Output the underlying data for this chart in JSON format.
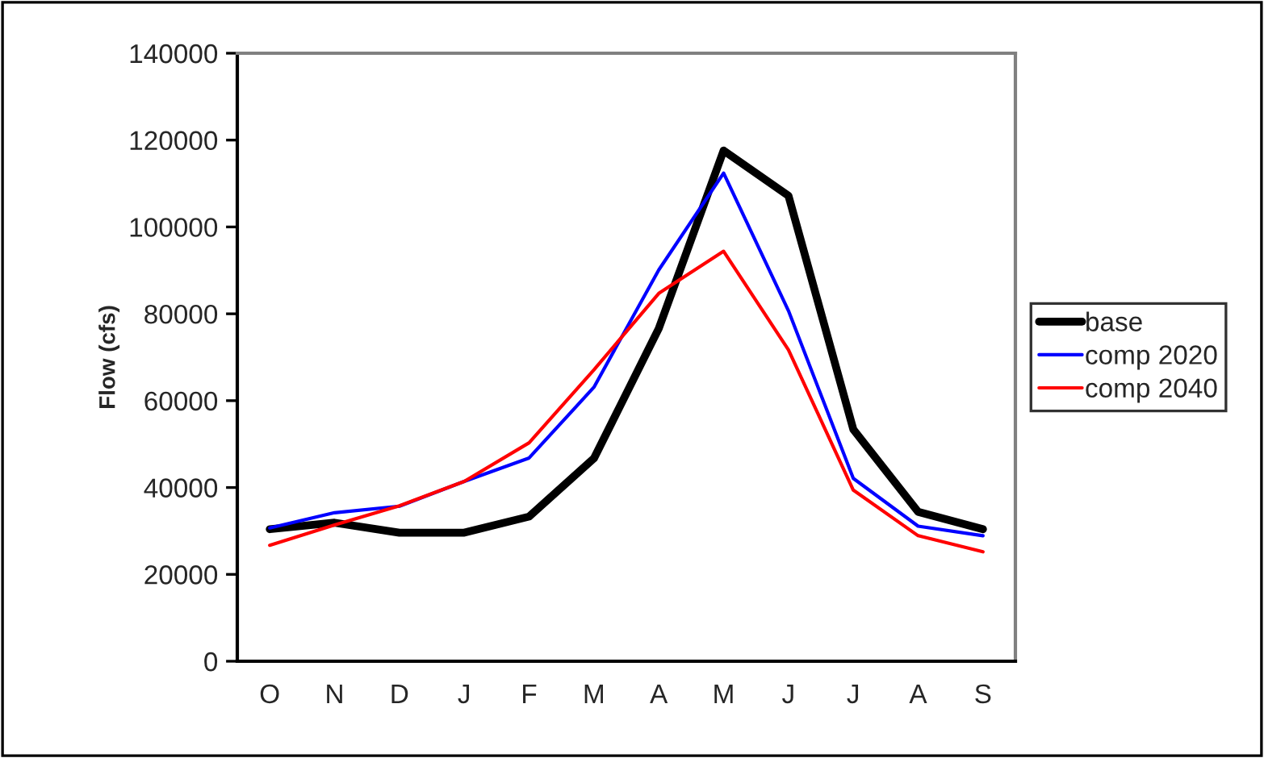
{
  "chart_data": {
    "type": "line",
    "ylabel": "Flow (cfs)",
    "categories": [
      "O",
      "N",
      "D",
      "J",
      "F",
      "M",
      "A",
      "M",
      "J",
      "J",
      "A",
      "S"
    ],
    "series": [
      {
        "name": "base",
        "color": "#000000",
        "values": [
          30400,
          31900,
          29600,
          29600,
          33300,
          46700,
          76600,
          117600,
          107200,
          53400,
          34400,
          30400
        ]
      },
      {
        "name": "comp 2020",
        "color": "#0000ff",
        "values": [
          30700,
          34200,
          35700,
          41400,
          46800,
          63100,
          90100,
          112400,
          80700,
          42100,
          31100,
          28900
        ]
      },
      {
        "name": "comp 2040",
        "color": "#ff0000",
        "values": [
          26700,
          31400,
          35800,
          41400,
          50300,
          67100,
          84700,
          94400,
          71700,
          39400,
          28900,
          25200
        ]
      }
    ],
    "ylim": [
      0,
      140000
    ],
    "yticks": [
      0,
      20000,
      40000,
      60000,
      80000,
      100000,
      120000,
      140000
    ],
    "grid": false,
    "legend": "right",
    "marker": "none",
    "line_style": "solid"
  }
}
